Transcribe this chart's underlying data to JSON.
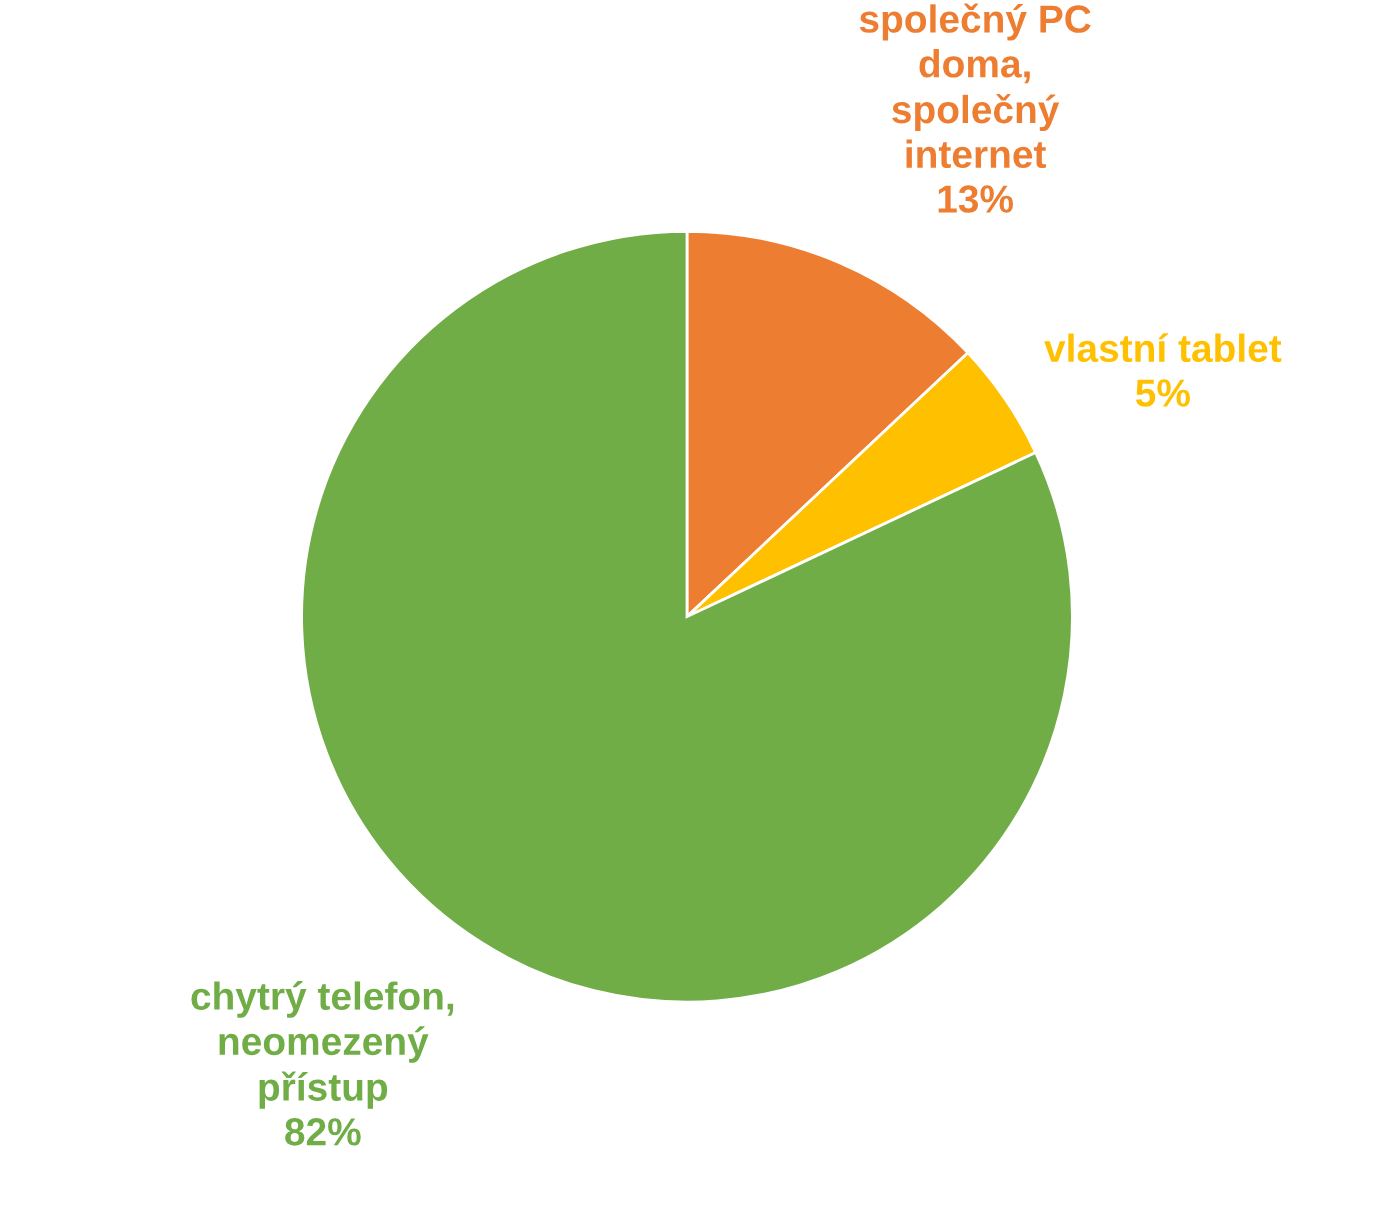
{
  "chart_data": {
    "type": "pie",
    "categories": [
      "společný PC\ndoma,\nspolečný\ninternet",
      "vlastní tablet",
      "chytrý telefon,\nneomezený\npřístup"
    ],
    "values": [
      13,
      5,
      82
    ],
    "value_labels": [
      "13%",
      "5%",
      "82%"
    ],
    "colors": [
      "#ed7d31",
      "#ffc000",
      "#70ad47"
    ]
  }
}
